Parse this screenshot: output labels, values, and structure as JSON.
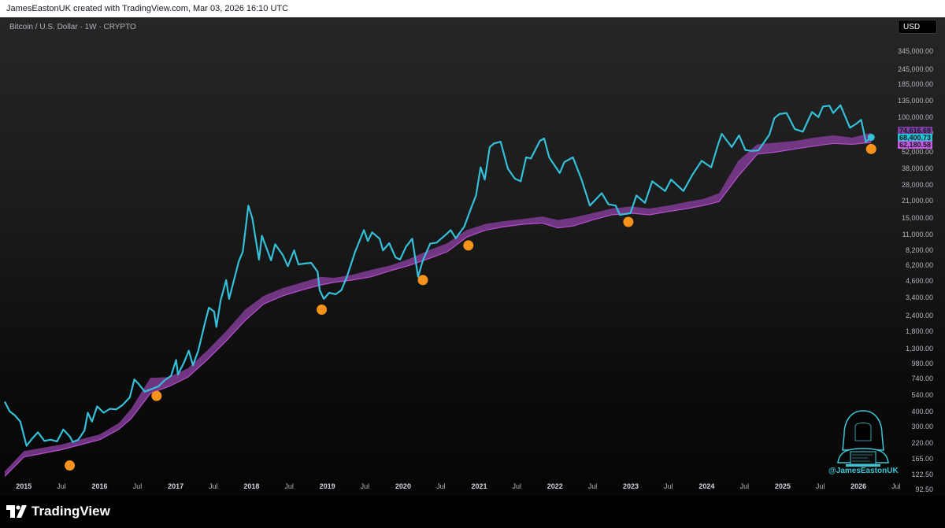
{
  "header": {
    "attribution": "JamesEastonUK created with TradingView.com, Mar 03, 2026 16:10 UTC"
  },
  "symbol": {
    "label": "Bitcoin / U.S. Dollar · 1W · CRYPTO"
  },
  "currency_button": "USD",
  "footer": {
    "brand": "TradingView"
  },
  "watermark": {
    "handle": "@JamesEastonUK",
    "icon": "hooded-figure-laptop-icon"
  },
  "colors": {
    "price_line": "#33c0d8",
    "band_fill": "#7a3a8e",
    "band_edge": "#b84fd1",
    "marker": "#f7931a",
    "background": "#000000"
  },
  "chart_data": {
    "type": "line",
    "y_scale": "log",
    "ylim": [
      92.5,
      470000
    ],
    "xlim": [
      "2014-10-01",
      "2026-06-20"
    ],
    "y_ticks": [
      "345,000.00",
      "245,000.00",
      "185,000.00",
      "135,000.00",
      "100,000.00",
      "74,000.00",
      "52,000.00",
      "38,000.00",
      "28,000.00",
      "21,000.00",
      "15,000.00",
      "11,000.00",
      "8,200.00",
      "6,200.00",
      "4,600.00",
      "3,400.00",
      "2,400.00",
      "1,800.00",
      "1,300.00",
      "980.00",
      "740.00",
      "540.00",
      "400.00",
      "300.00",
      "220.00",
      "165.00",
      "122.50",
      "92.50"
    ],
    "x_ticks": [
      {
        "date": "2015-01-01",
        "label": "2015",
        "year": true
      },
      {
        "date": "2015-07-01",
        "label": "Jul",
        "year": false
      },
      {
        "date": "2016-01-01",
        "label": "2016",
        "year": true
      },
      {
        "date": "2016-07-01",
        "label": "Jul",
        "year": false
      },
      {
        "date": "2017-01-01",
        "label": "2017",
        "year": true
      },
      {
        "date": "2017-07-01",
        "label": "Jul",
        "year": false
      },
      {
        "date": "2018-01-01",
        "label": "2018",
        "year": true
      },
      {
        "date": "2018-07-01",
        "label": "Jul",
        "year": false
      },
      {
        "date": "2019-01-01",
        "label": "2019",
        "year": true
      },
      {
        "date": "2019-07-01",
        "label": "Jul",
        "year": false
      },
      {
        "date": "2020-01-01",
        "label": "2020",
        "year": true
      },
      {
        "date": "2020-07-01",
        "label": "Jul",
        "year": false
      },
      {
        "date": "2021-01-01",
        "label": "2021",
        "year": true
      },
      {
        "date": "2021-07-01",
        "label": "Jul",
        "year": false
      },
      {
        "date": "2022-01-01",
        "label": "2022",
        "year": true
      },
      {
        "date": "2022-07-01",
        "label": "Jul",
        "year": false
      },
      {
        "date": "2023-01-01",
        "label": "2023",
        "year": true
      },
      {
        "date": "2023-07-01",
        "label": "Jul",
        "year": false
      },
      {
        "date": "2024-01-01",
        "label": "2024",
        "year": true
      },
      {
        "date": "2024-07-01",
        "label": "Jul",
        "year": false
      },
      {
        "date": "2025-01-01",
        "label": "2025",
        "year": true
      },
      {
        "date": "2025-07-01",
        "label": "Jul",
        "year": false
      },
      {
        "date": "2026-01-01",
        "label": "2026",
        "year": true
      },
      {
        "date": "2026-07-01",
        "label": "Jul",
        "year": false
      }
    ],
    "series": [
      {
        "type": "line",
        "points": [
          [
            "2014-10-01",
            480
          ],
          [
            "2014-10-25",
            400
          ],
          [
            "2014-11-20",
            370
          ],
          [
            "2014-12-15",
            330
          ],
          [
            "2015-01-14",
            210
          ],
          [
            "2015-02-10",
            240
          ],
          [
            "2015-03-10",
            270
          ],
          [
            "2015-04-10",
            230
          ],
          [
            "2015-05-10",
            235
          ],
          [
            "2015-06-10",
            228
          ],
          [
            "2015-07-10",
            285
          ],
          [
            "2015-08-10",
            250
          ],
          [
            "2015-08-25",
            225
          ],
          [
            "2015-09-20",
            235
          ],
          [
            "2015-10-20",
            280
          ],
          [
            "2015-11-05",
            390
          ],
          [
            "2015-11-25",
            330
          ],
          [
            "2015-12-20",
            440
          ],
          [
            "2016-01-20",
            390
          ],
          [
            "2016-02-20",
            420
          ],
          [
            "2016-03-20",
            415
          ],
          [
            "2016-04-20",
            450
          ],
          [
            "2016-05-25",
            520
          ],
          [
            "2016-06-16",
            730
          ],
          [
            "2016-07-10",
            660
          ],
          [
            "2016-08-05",
            580
          ],
          [
            "2016-09-10",
            610
          ],
          [
            "2016-10-10",
            640
          ],
          [
            "2016-11-10",
            720
          ],
          [
            "2016-12-10",
            780
          ],
          [
            "2017-01-03",
            1050
          ],
          [
            "2017-01-12",
            800
          ],
          [
            "2017-02-10",
            1000
          ],
          [
            "2017-03-05",
            1250
          ],
          [
            "2017-03-25",
            950
          ],
          [
            "2017-04-20",
            1250
          ],
          [
            "2017-05-20",
            2050
          ],
          [
            "2017-06-10",
            2800
          ],
          [
            "2017-07-05",
            2600
          ],
          [
            "2017-07-16",
            1950
          ],
          [
            "2017-08-05",
            3200
          ],
          [
            "2017-09-01",
            4700
          ],
          [
            "2017-09-15",
            3300
          ],
          [
            "2017-10-10",
            4800
          ],
          [
            "2017-11-01",
            6700
          ],
          [
            "2017-11-20",
            8000
          ],
          [
            "2017-12-17",
            19000
          ],
          [
            "2018-01-05",
            15000
          ],
          [
            "2018-02-06",
            6900
          ],
          [
            "2018-02-20",
            10800
          ],
          [
            "2018-03-15",
            8500
          ],
          [
            "2018-04-05",
            6800
          ],
          [
            "2018-04-25",
            9200
          ],
          [
            "2018-06-01",
            7500
          ],
          [
            "2018-06-25",
            6100
          ],
          [
            "2018-07-25",
            8200
          ],
          [
            "2018-08-15",
            6300
          ],
          [
            "2018-09-10",
            6400
          ],
          [
            "2018-10-15",
            6500
          ],
          [
            "2018-11-15",
            5500
          ],
          [
            "2018-11-25",
            3900
          ],
          [
            "2018-12-15",
            3300
          ],
          [
            "2019-01-10",
            3700
          ],
          [
            "2019-02-10",
            3600
          ],
          [
            "2019-03-10",
            3900
          ],
          [
            "2019-04-05",
            5000
          ],
          [
            "2019-05-15",
            8000
          ],
          [
            "2019-06-26",
            12000
          ],
          [
            "2019-07-15",
            9800
          ],
          [
            "2019-08-05",
            11500
          ],
          [
            "2019-09-10",
            10200
          ],
          [
            "2019-09-26",
            8200
          ],
          [
            "2019-10-26",
            9400
          ],
          [
            "2019-11-25",
            7200
          ],
          [
            "2019-12-17",
            6900
          ],
          [
            "2020-01-15",
            8800
          ],
          [
            "2020-02-14",
            10200
          ],
          [
            "2020-03-13",
            5000
          ],
          [
            "2020-04-05",
            6800
          ],
          [
            "2020-05-10",
            9300
          ],
          [
            "2020-06-10",
            9500
          ],
          [
            "2020-07-27",
            11100
          ],
          [
            "2020-08-17",
            12000
          ],
          [
            "2020-09-10",
            10300
          ],
          [
            "2020-10-21",
            12800
          ],
          [
            "2020-11-25",
            18500
          ],
          [
            "2020-12-17",
            23000
          ],
          [
            "2021-01-08",
            39000
          ],
          [
            "2021-01-28",
            31000
          ],
          [
            "2021-02-21",
            57000
          ],
          [
            "2021-03-13",
            61000
          ],
          [
            "2021-04-14",
            63000
          ],
          [
            "2021-05-19",
            38000
          ],
          [
            "2021-06-22",
            31500
          ],
          [
            "2021-07-20",
            30000
          ],
          [
            "2021-08-15",
            47000
          ],
          [
            "2021-09-07",
            46000
          ],
          [
            "2021-10-20",
            64000
          ],
          [
            "2021-11-10",
            67000
          ],
          [
            "2021-12-04",
            47000
          ],
          [
            "2022-01-24",
            35000
          ],
          [
            "2022-02-15",
            43000
          ],
          [
            "2022-03-28",
            47000
          ],
          [
            "2022-05-09",
            31000
          ],
          [
            "2022-06-18",
            19000
          ],
          [
            "2022-08-14",
            24000
          ],
          [
            "2022-09-15",
            19500
          ],
          [
            "2022-10-20",
            19000
          ],
          [
            "2022-11-09",
            16000
          ],
          [
            "2022-12-30",
            16500
          ],
          [
            "2023-01-28",
            23000
          ],
          [
            "2023-03-10",
            20000
          ],
          [
            "2023-04-14",
            30000
          ],
          [
            "2023-06-15",
            25000
          ],
          [
            "2023-07-14",
            31000
          ],
          [
            "2023-09-11",
            25000
          ],
          [
            "2023-10-25",
            34000
          ],
          [
            "2023-12-08",
            44000
          ],
          [
            "2024-01-23",
            39000
          ],
          [
            "2024-02-28",
            62000
          ],
          [
            "2024-03-14",
            73000
          ],
          [
            "2024-05-01",
            57000
          ],
          [
            "2024-06-05",
            71000
          ],
          [
            "2024-07-05",
            54000
          ],
          [
            "2024-08-05",
            53000
          ],
          [
            "2024-09-06",
            53500
          ],
          [
            "2024-10-29",
            72000
          ],
          [
            "2024-11-22",
            98000
          ],
          [
            "2024-12-17",
            106000
          ],
          [
            "2025-01-20",
            108000
          ],
          [
            "2025-02-28",
            80000
          ],
          [
            "2025-04-08",
            76000
          ],
          [
            "2025-05-22",
            110000
          ],
          [
            "2025-06-22",
            100000
          ],
          [
            "2025-07-14",
            122000
          ],
          [
            "2025-08-14",
            124000
          ],
          [
            "2025-09-01",
            108000
          ],
          [
            "2025-10-06",
            125000
          ],
          [
            "2025-11-21",
            82000
          ],
          [
            "2025-12-20",
            88000
          ],
          [
            "2026-01-14",
            95000
          ],
          [
            "2026-02-05",
            63000
          ],
          [
            "2026-03-03",
            68400
          ]
        ]
      },
      {
        "type": "band",
        "points": [
          [
            "2014-10-01",
            118,
            130
          ],
          [
            "2015-01-01",
            170,
            190
          ],
          [
            "2015-07-01",
            195,
            215
          ],
          [
            "2016-01-01",
            235,
            260
          ],
          [
            "2016-04-01",
            285,
            320
          ],
          [
            "2016-06-01",
            350,
            420
          ],
          [
            "2016-09-01",
            560,
            750
          ],
          [
            "2016-12-01",
            640,
            760
          ],
          [
            "2017-03-01",
            760,
            900
          ],
          [
            "2017-06-01",
            1050,
            1250
          ],
          [
            "2017-09-01",
            1500,
            1800
          ],
          [
            "2017-12-01",
            2200,
            2700
          ],
          [
            "2018-03-01",
            3000,
            3500
          ],
          [
            "2018-06-01",
            3500,
            4050
          ],
          [
            "2018-09-01",
            3900,
            4500
          ],
          [
            "2018-12-01",
            4300,
            5000
          ],
          [
            "2019-02-01",
            4500,
            4900
          ],
          [
            "2019-05-01",
            4700,
            5200
          ],
          [
            "2019-08-01",
            5000,
            5700
          ],
          [
            "2019-11-01",
            5600,
            6200
          ],
          [
            "2020-02-01",
            6200,
            7000
          ],
          [
            "2020-05-01",
            7000,
            8200
          ],
          [
            "2020-08-01",
            8000,
            9400
          ],
          [
            "2020-11-01",
            10500,
            12000
          ],
          [
            "2021-02-01",
            12000,
            13500
          ],
          [
            "2021-05-01",
            12800,
            14200
          ],
          [
            "2021-08-01",
            13400,
            14800
          ],
          [
            "2021-11-01",
            13700,
            15500
          ],
          [
            "2022-01-15",
            12500,
            14500
          ],
          [
            "2022-04-01",
            13000,
            15200
          ],
          [
            "2022-07-01",
            14500,
            16500
          ],
          [
            "2022-10-01",
            16000,
            18000
          ],
          [
            "2023-01-01",
            16500,
            18700
          ],
          [
            "2023-04-01",
            16000,
            18000
          ],
          [
            "2023-07-01",
            17000,
            19000
          ],
          [
            "2023-10-01",
            18000,
            20500
          ],
          [
            "2023-12-15",
            19000,
            21500
          ],
          [
            "2024-03-01",
            20500,
            24000
          ],
          [
            "2024-06-01",
            33000,
            44000
          ],
          [
            "2024-09-01",
            50000,
            60000
          ],
          [
            "2024-12-01",
            52000,
            62000
          ],
          [
            "2025-03-01",
            55000,
            64000
          ],
          [
            "2025-06-01",
            58000,
            68000
          ],
          [
            "2025-09-01",
            61000,
            71000
          ],
          [
            "2025-12-01",
            60000,
            68000
          ],
          [
            "2026-03-03",
            62200,
            74617
          ]
        ]
      }
    ],
    "markers": [
      [
        "2015-08-10",
        145
      ],
      [
        "2016-10-01",
        535
      ],
      [
        "2018-12-05",
        2700
      ],
      [
        "2020-04-05",
        4700
      ],
      [
        "2020-11-10",
        9000
      ],
      [
        "2022-12-20",
        14000
      ],
      [
        "2026-03-03",
        55000
      ]
    ],
    "last_values": {
      "close": {
        "label": "68,400.73",
        "value": 68400.73,
        "bg": "#1fc7d4"
      },
      "band_upper": {
        "label": "74,616.69",
        "value": 74616.69,
        "bg": "#7d3fa0"
      },
      "band_lower": {
        "label": "62,180.58",
        "value": 62180.58,
        "bg": "#c45ae0"
      }
    }
  }
}
